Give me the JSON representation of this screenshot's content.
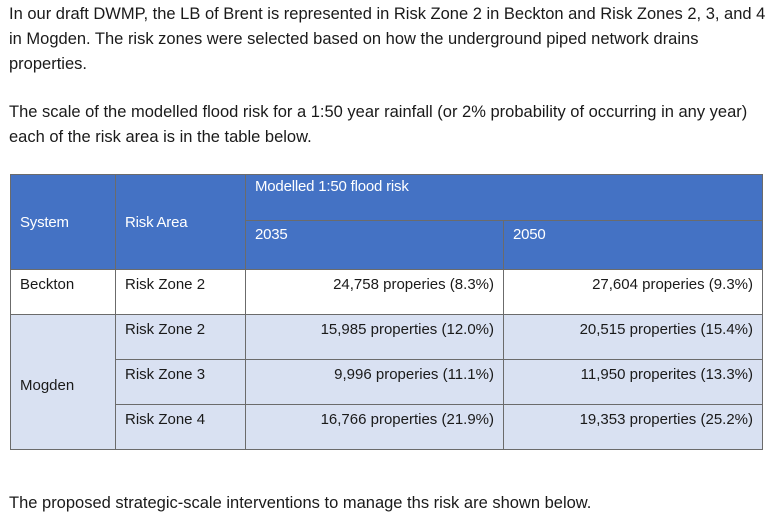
{
  "paragraphs": {
    "intro": "In our draft DWMP, the LB of Brent is represented in Risk Zone 2 in Beckton and Risk Zones 2, 3, and 4 in Mogden. The risk zones were selected based on how the underground piped network drains properties.",
    "scale": "The scale of the modelled flood risk for a 1:50 year rainfall (or 2% probability of occurring in any year) each of the risk area is in the table below.",
    "proposed": "The proposed strategic-scale interventions to manage ths risk are shown below."
  },
  "table": {
    "headers": {
      "system": "System",
      "risk_area": "Risk Area",
      "group": "Modelled 1:50 flood risk",
      "year1": "2035",
      "year2": "2050"
    },
    "rows": [
      {
        "system": "Beckton",
        "risk_area": "Risk Zone 2",
        "v2035": "24,758 properies (8.3%)",
        "v2050": "27,604 properies (9.3%)"
      },
      {
        "system": "Mogden",
        "risk_area": "Risk Zone 2",
        "v2035": "15,985 properties (12.0%)",
        "v2050": "20,515 properties (15.4%)"
      },
      {
        "risk_area": "Risk Zone 3",
        "v2035": "9,996 properies (11.1%)",
        "v2050": "11,950 properites (13.3%)"
      },
      {
        "risk_area": "Risk Zone 4",
        "v2035": "16,766 properties (21.9%)",
        "v2050": "19,353 properties (25.2%)"
      }
    ]
  },
  "colors": {
    "header_bg": "#4472c4",
    "shaded_row_bg": "#d9e1f2"
  }
}
